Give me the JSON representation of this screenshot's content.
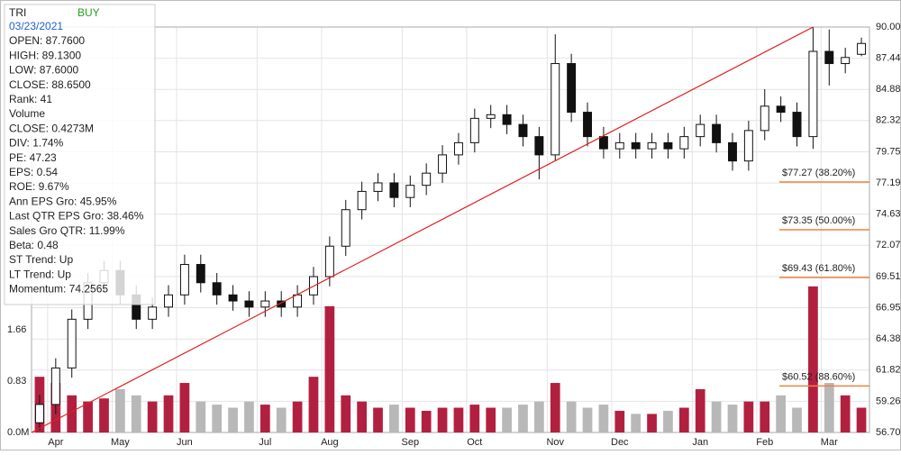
{
  "chart_data": {
    "type": "candlestick",
    "info": {
      "ticker": "TRI",
      "rating": "BUY",
      "date": "03/23/2021",
      "lines": [
        "OPEN: 87.7600",
        "HIGH: 89.1300",
        "LOW: 87.6000",
        "CLOSE: 88.6500",
        "Rank: 41",
        "Volume",
        "CLOSE: 0.4273M",
        "DIV: 1.74%",
        "PE: 47.23",
        "EPS: 0.54",
        "ROE: 9.67%",
        "Ann EPS Gro: 45.95%",
        "Last QTR EPS Gro: 38.46%",
        "Sales Gro QTR: 11.99%",
        "Beta: 0.48",
        "ST Trend: Up",
        "LT Trend: Up",
        "Momentum: 74.2565"
      ]
    },
    "categories": [
      null,
      "Apr",
      null,
      null,
      null,
      "May",
      null,
      null,
      null,
      "Jun",
      null,
      null,
      null,
      null,
      "Jul",
      null,
      null,
      null,
      "Aug",
      null,
      null,
      null,
      null,
      "Sep",
      null,
      null,
      null,
      "Oct",
      null,
      null,
      null,
      null,
      "Nov",
      null,
      null,
      null,
      "Dec",
      null,
      null,
      null,
      null,
      "Jan",
      null,
      null,
      null,
      "Feb",
      null,
      null,
      null,
      "Mar",
      null,
      null
    ],
    "open": [
      57.5,
      59,
      62,
      66,
      69,
      70,
      68,
      66,
      67,
      68,
      70.5,
      69,
      68,
      67.5,
      67,
      67.5,
      67,
      68,
      69.5,
      72,
      75,
      76.5,
      77.2,
      76,
      77,
      78,
      79.5,
      80.5,
      82.5,
      82.8,
      82,
      81,
      79.5,
      87,
      83,
      81,
      80,
      80.5,
      80,
      80.5,
      80,
      81,
      82,
      80.5,
      79,
      81.5,
      83.5,
      83,
      81,
      88,
      87,
      87.76
    ],
    "high": [
      59.8,
      62.8,
      66.8,
      69.8,
      70.8,
      70.8,
      68.8,
      67.8,
      68.8,
      71.3,
      71.3,
      69.8,
      68.8,
      68.3,
      68.3,
      68.3,
      68.8,
      70.3,
      72.8,
      75.8,
      77.3,
      78,
      78,
      77.8,
      78.8,
      80.3,
      81.3,
      83.3,
      83.6,
      83.6,
      82.8,
      81.8,
      89.4,
      87.8,
      83.8,
      81.8,
      81.3,
      81.3,
      81.3,
      81.3,
      81.8,
      82.8,
      82.8,
      81.3,
      82.3,
      84.9,
      84.3,
      83.8,
      90,
      89.8,
      88.3,
      89.13
    ],
    "low": [
      56.9,
      58.2,
      61.2,
      65.2,
      68.2,
      67.2,
      65.2,
      65.2,
      66.2,
      67.2,
      68.2,
      67.2,
      66.7,
      66.2,
      66.2,
      66.2,
      66.2,
      67.2,
      68.7,
      71.2,
      74.2,
      75.7,
      75.2,
      75.2,
      76.2,
      77.2,
      78.7,
      79.7,
      81.7,
      81.2,
      80.2,
      77.5,
      79,
      82.2,
      80.2,
      79.2,
      79.2,
      79.2,
      79.2,
      79.2,
      79.2,
      80.2,
      79.7,
      78.2,
      78.2,
      80.7,
      82.2,
      80.2,
      80,
      85.2,
      86.2,
      87.6
    ],
    "close": [
      59,
      62,
      66,
      69,
      70,
      68,
      66,
      67,
      68,
      70.5,
      69,
      68,
      67.5,
      67,
      67.5,
      67,
      68,
      69.5,
      72,
      75,
      76.5,
      77.2,
      76,
      77,
      78,
      79.5,
      80.5,
      82.5,
      82.8,
      82,
      81,
      79.5,
      87,
      83,
      81,
      80,
      80.5,
      80,
      80.5,
      80,
      81,
      82,
      80.5,
      79,
      81.5,
      83.5,
      83,
      81,
      88,
      87,
      87.5,
      88.65
    ],
    "volume": [
      0.9,
      0.8,
      0.6,
      0.5,
      0.55,
      0.7,
      0.6,
      0.5,
      0.6,
      0.8,
      0.5,
      0.45,
      0.4,
      0.5,
      0.45,
      0.4,
      0.5,
      0.9,
      2.04,
      0.6,
      0.5,
      0.4,
      0.45,
      0.4,
      0.35,
      0.4,
      0.4,
      0.45,
      0.4,
      0.4,
      0.45,
      0.5,
      0.8,
      0.5,
      0.4,
      0.45,
      0.35,
      0.3,
      0.3,
      0.35,
      0.4,
      0.7,
      0.5,
      0.45,
      0.5,
      0.5,
      0.6,
      0.4,
      2.36,
      0.8,
      0.6,
      0.4
    ],
    "ylim": [
      56.7,
      90
    ],
    "yticks": [
      {
        "value": 90,
        "label": "90.00"
      },
      {
        "value": 87.44,
        "label": "87.44"
      },
      {
        "value": 84.88,
        "label": "84.88"
      },
      {
        "value": 82.32,
        "label": "82.32"
      },
      {
        "value": 79.75,
        "label": "79.75"
      },
      {
        "value": 77.19,
        "label": "77.19"
      },
      {
        "value": 74.63,
        "label": "74.63"
      },
      {
        "value": 72.07,
        "label": "72.07"
      },
      {
        "value": 69.51,
        "label": "69.51"
      },
      {
        "value": 66.95,
        "label": "66.95"
      },
      {
        "value": 64.38,
        "label": "64.38"
      },
      {
        "value": 61.82,
        "label": "61.82"
      },
      {
        "value": 59.26,
        "label": "59.26"
      },
      {
        "value": 56.7,
        "label": "56.70"
      }
    ],
    "vol_ylim": [
      0,
      6.55
    ],
    "vol_ticks": [
      {
        "value": 0,
        "label": "0.0M"
      },
      0.83,
      1.66
    ],
    "trendline": {
      "x": [
        0,
        48
      ],
      "y": [
        56.7,
        90
      ],
      "color": "#e02020"
    },
    "fib_levels": [
      {
        "value": 77.27,
        "label": "$77.27 (38.20%)"
      },
      {
        "value": 73.35,
        "label": "$73.35 (50.00%)"
      },
      {
        "value": 69.43,
        "label": "$69.43 (61.80%)"
      },
      {
        "value": 60.52,
        "label": "$60.52 (88.60%)"
      }
    ],
    "fib_color": "#f08040",
    "candle_color": "#111111",
    "volume_up_color": "#b22040",
    "volume_down_color": "#b8b8b8",
    "grid": true
  }
}
